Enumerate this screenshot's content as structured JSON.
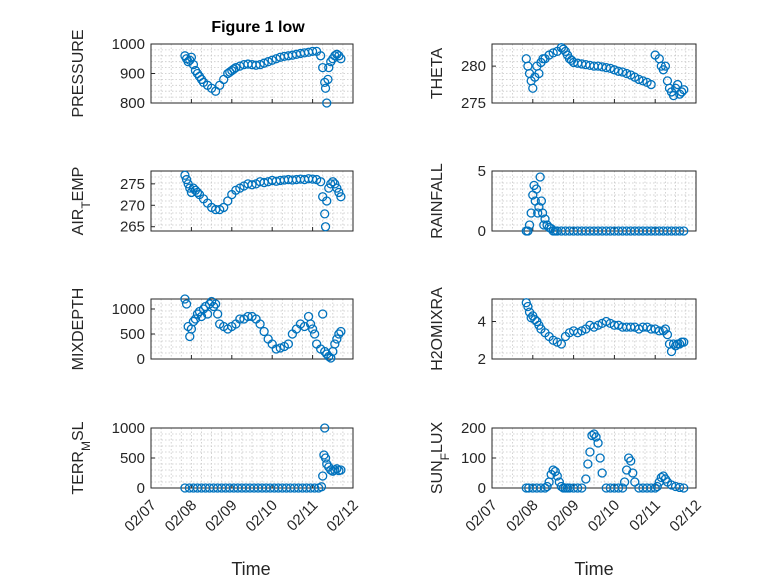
{
  "figure": {
    "title": "Figure 1 low",
    "x_tick_labels": [
      "02/07",
      "02/08",
      "02/09",
      "02/10",
      "02/11",
      "02/12"
    ],
    "xlabel": "Time"
  },
  "chart_data": [
    {
      "type": "scatter",
      "ylabel": "PRESSURE",
      "ylim": [
        800,
        1000
      ],
      "yticks": [
        800,
        900,
        1000
      ],
      "xlim": [
        0,
        5
      ],
      "grid": true,
      "color": "#0072BD",
      "x": [
        0.84,
        0.88,
        0.92,
        0.96,
        1.0,
        1.05,
        1.1,
        1.15,
        1.2,
        1.25,
        1.3,
        1.4,
        1.5,
        1.6,
        1.7,
        1.8,
        1.9,
        1.95,
        2.0,
        2.05,
        2.1,
        2.2,
        2.3,
        2.4,
        2.5,
        2.6,
        2.7,
        2.8,
        2.9,
        3.0,
        3.1,
        3.2,
        3.3,
        3.4,
        3.5,
        3.6,
        3.7,
        3.8,
        3.9,
        4.0,
        4.1,
        4.2,
        4.25,
        4.3,
        4.32,
        4.35,
        4.38,
        4.4,
        4.45,
        4.5,
        4.55,
        4.6,
        4.65,
        4.7
      ],
      "y": [
        960,
        950,
        940,
        945,
        955,
        930,
        910,
        900,
        890,
        880,
        870,
        860,
        850,
        840,
        860,
        880,
        900,
        905,
        910,
        915,
        920,
        925,
        930,
        932,
        930,
        928,
        930,
        935,
        940,
        945,
        950,
        955,
        958,
        960,
        962,
        965,
        968,
        970,
        972,
        975,
        975,
        960,
        920,
        870,
        850,
        800,
        880,
        920,
        940,
        950,
        960,
        965,
        960,
        950
      ]
    },
    {
      "type": "scatter",
      "ylabel": "THETA",
      "ylim": [
        275,
        283
      ],
      "yticks": [
        275,
        280
      ],
      "xlim": [
        0,
        5
      ],
      "grid": true,
      "color": "#0072BD",
      "x": [
        0.84,
        0.88,
        0.92,
        0.96,
        1.0,
        1.05,
        1.1,
        1.15,
        1.2,
        1.25,
        1.3,
        1.4,
        1.5,
        1.6,
        1.7,
        1.75,
        1.8,
        1.85,
        1.9,
        1.95,
        2.0,
        2.1,
        2.2,
        2.3,
        2.4,
        2.5,
        2.6,
        2.7,
        2.8,
        2.9,
        3.0,
        3.1,
        3.2,
        3.3,
        3.4,
        3.5,
        3.6,
        3.7,
        3.8,
        3.9,
        4.0,
        4.1,
        4.15,
        4.2,
        4.25,
        4.3,
        4.35,
        4.4,
        4.45,
        4.5,
        4.55,
        4.6,
        4.65,
        4.7
      ],
      "y": [
        281,
        280,
        279,
        278,
        277,
        278.5,
        280,
        279,
        280.5,
        281,
        281,
        281.5,
        281.8,
        282,
        282.5,
        282.3,
        282,
        281.5,
        281,
        280.8,
        280.5,
        280.4,
        280.3,
        280.2,
        280.1,
        280,
        280,
        279.9,
        279.8,
        279.7,
        279.5,
        279.3,
        279.2,
        279,
        278.8,
        278.5,
        278.2,
        278,
        277.8,
        277.5,
        281.5,
        281,
        280,
        279.5,
        280,
        278,
        277,
        276.5,
        276,
        277,
        277.5,
        276.2,
        276.5,
        276.8
      ]
    },
    {
      "type": "scatter",
      "ylabel": "AIR_TEMP",
      "ylim": [
        264,
        278
      ],
      "yticks": [
        265,
        270,
        275
      ],
      "xlim": [
        0,
        5
      ],
      "grid": true,
      "color": "#0072BD",
      "x": [
        0.84,
        0.88,
        0.92,
        0.96,
        1.0,
        1.05,
        1.1,
        1.15,
        1.2,
        1.3,
        1.4,
        1.5,
        1.6,
        1.7,
        1.8,
        1.9,
        2.0,
        2.1,
        2.2,
        2.3,
        2.4,
        2.5,
        2.6,
        2.7,
        2.8,
        2.9,
        3.0,
        3.1,
        3.2,
        3.3,
        3.4,
        3.5,
        3.6,
        3.7,
        3.8,
        3.9,
        4.0,
        4.1,
        4.2,
        4.25,
        4.3,
        4.32,
        4.35,
        4.4,
        4.45,
        4.5,
        4.55,
        4.6,
        4.65,
        4.7
      ],
      "y": [
        277,
        276,
        275,
        274,
        273,
        274,
        273.5,
        273,
        272.5,
        271.5,
        270.5,
        269.5,
        269,
        269,
        269.5,
        271,
        272.5,
        273.5,
        274,
        274.5,
        275,
        274.8,
        275,
        275.5,
        275.3,
        275.5,
        275.8,
        275.6,
        275.8,
        275.9,
        276,
        275.9,
        276,
        276.1,
        276,
        276.2,
        276.1,
        276,
        275.5,
        272,
        268,
        265,
        271,
        274,
        275,
        275.5,
        275,
        274,
        273,
        272
      ]
    },
    {
      "type": "scatter",
      "ylabel": "RAINFALL",
      "ylim": [
        0,
        5
      ],
      "yticks": [
        0,
        5
      ],
      "xlim": [
        0,
        5
      ],
      "grid": true,
      "color": "#0072BD",
      "x": [
        0.84,
        0.88,
        0.92,
        0.96,
        1.0,
        1.03,
        1.06,
        1.09,
        1.12,
        1.15,
        1.18,
        1.21,
        1.24,
        1.27,
        1.3,
        1.35,
        1.4,
        1.45,
        1.5,
        1.55,
        1.6,
        1.7,
        1.8,
        1.9,
        2.0,
        2.1,
        2.2,
        2.3,
        2.4,
        2.5,
        2.6,
        2.7,
        2.8,
        2.9,
        3.0,
        3.1,
        3.2,
        3.3,
        3.4,
        3.5,
        3.6,
        3.7,
        3.8,
        3.9,
        4.0,
        4.1,
        4.2,
        4.3,
        4.4,
        4.5,
        4.6,
        4.7
      ],
      "y": [
        0,
        0,
        0.5,
        1.5,
        3,
        3.8,
        2.5,
        3.5,
        1.5,
        2,
        4.5,
        2.5,
        1.5,
        0.5,
        1,
        0.5,
        0.3,
        0.2,
        0,
        0,
        0,
        0,
        0,
        0,
        0,
        0,
        0,
        0,
        0,
        0,
        0,
        0,
        0,
        0,
        0,
        0,
        0,
        0,
        0,
        0,
        0,
        0,
        0,
        0,
        0,
        0,
        0,
        0,
        0,
        0,
        0,
        0
      ]
    },
    {
      "type": "scatter",
      "ylabel": "MIXDEPTH",
      "ylim": [
        0,
        1200
      ],
      "yticks": [
        0,
        500,
        1000
      ],
      "xlim": [
        0,
        5
      ],
      "grid": true,
      "color": "#0072BD",
      "x": [
        0.84,
        0.88,
        0.92,
        0.96,
        1.0,
        1.05,
        1.1,
        1.15,
        1.2,
        1.25,
        1.3,
        1.35,
        1.4,
        1.45,
        1.5,
        1.55,
        1.6,
        1.65,
        1.7,
        1.8,
        1.9,
        2.0,
        2.1,
        2.2,
        2.3,
        2.4,
        2.5,
        2.6,
        2.7,
        2.8,
        2.9,
        3.0,
        3.1,
        3.2,
        3.3,
        3.4,
        3.5,
        3.6,
        3.7,
        3.8,
        3.9,
        3.95,
        4.0,
        4.05,
        4.1,
        4.2,
        4.25,
        4.3,
        4.35,
        4.4,
        4.45,
        4.5,
        4.55,
        4.6,
        4.65,
        4.7
      ],
      "y": [
        1200,
        1100,
        650,
        450,
        600,
        750,
        800,
        900,
        950,
        850,
        1000,
        1050,
        900,
        1100,
        1150,
        1050,
        1100,
        900,
        700,
        650,
        600,
        650,
        700,
        800,
        800,
        850,
        850,
        800,
        700,
        550,
        400,
        300,
        200,
        220,
        250,
        300,
        500,
        600,
        700,
        650,
        850,
        700,
        600,
        500,
        300,
        200,
        900,
        150,
        100,
        50,
        20,
        150,
        300,
        400,
        500,
        550
      ]
    },
    {
      "type": "scatter",
      "ylabel": "H2OMIXRA",
      "ylim": [
        2,
        5.2
      ],
      "yticks": [
        2,
        4
      ],
      "xlim": [
        0,
        5
      ],
      "grid": true,
      "color": "#0072BD",
      "x": [
        0.84,
        0.88,
        0.92,
        0.96,
        1.0,
        1.05,
        1.1,
        1.15,
        1.2,
        1.3,
        1.4,
        1.5,
        1.6,
        1.7,
        1.8,
        1.9,
        2.0,
        2.1,
        2.2,
        2.3,
        2.4,
        2.5,
        2.6,
        2.7,
        2.8,
        2.9,
        3.0,
        3.1,
        3.2,
        3.3,
        3.4,
        3.5,
        3.6,
        3.7,
        3.8,
        3.9,
        4.0,
        4.1,
        4.2,
        4.25,
        4.3,
        4.35,
        4.4,
        4.45,
        4.5,
        4.55,
        4.6,
        4.65,
        4.7
      ],
      "y": [
        5,
        4.8,
        4.5,
        4.2,
        4.3,
        4.1,
        4.0,
        3.8,
        3.6,
        3.4,
        3.2,
        3.0,
        2.9,
        2.8,
        3.2,
        3.4,
        3.5,
        3.4,
        3.5,
        3.6,
        3.8,
        3.7,
        3.8,
        3.9,
        4.0,
        3.9,
        3.8,
        3.8,
        3.7,
        3.7,
        3.7,
        3.7,
        3.6,
        3.7,
        3.7,
        3.6,
        3.6,
        3.5,
        3.5,
        3.6,
        3.3,
        2.8,
        2.4,
        2.8,
        2.7,
        2.8,
        2.8,
        2.9,
        2.9
      ]
    },
    {
      "type": "scatter",
      "ylabel": "TERR_MSL",
      "ylim": [
        0,
        1000
      ],
      "yticks": [
        0,
        500,
        1000
      ],
      "xlim": [
        0,
        5
      ],
      "grid": true,
      "color": "#0072BD",
      "x": [
        0.84,
        0.95,
        1.05,
        1.15,
        1.25,
        1.35,
        1.45,
        1.55,
        1.65,
        1.75,
        1.85,
        1.95,
        2.05,
        2.15,
        2.25,
        2.35,
        2.45,
        2.55,
        2.65,
        2.75,
        2.85,
        2.95,
        3.05,
        3.15,
        3.25,
        3.35,
        3.45,
        3.55,
        3.65,
        3.75,
        3.85,
        3.95,
        4.05,
        4.15,
        4.22,
        4.25,
        4.28,
        4.3,
        4.32,
        4.35,
        4.4,
        4.45,
        4.5,
        4.55,
        4.6,
        4.65,
        4.7
      ],
      "y": [
        0,
        0,
        0,
        0,
        0,
        0,
        0,
        0,
        0,
        0,
        0,
        0,
        0,
        0,
        0,
        0,
        0,
        0,
        0,
        0,
        0,
        0,
        0,
        0,
        0,
        0,
        0,
        0,
        0,
        0,
        0,
        0,
        0,
        0,
        20,
        200,
        550,
        1000,
        500,
        400,
        350,
        300,
        280,
        300,
        320,
        290,
        300
      ]
    },
    {
      "type": "scatter",
      "ylabel": "SUN_FLUX",
      "ylim": [
        0,
        200
      ],
      "yticks": [
        0,
        100,
        200
      ],
      "xlim": [
        0,
        5
      ],
      "grid": true,
      "color": "#0072BD",
      "x": [
        0.84,
        0.9,
        1.0,
        1.1,
        1.2,
        1.3,
        1.35,
        1.4,
        1.45,
        1.5,
        1.55,
        1.6,
        1.65,
        1.7,
        1.75,
        1.8,
        1.85,
        1.9,
        2.0,
        2.1,
        2.2,
        2.3,
        2.35,
        2.4,
        2.45,
        2.5,
        2.55,
        2.6,
        2.65,
        2.7,
        2.8,
        2.9,
        3.0,
        3.1,
        3.2,
        3.25,
        3.3,
        3.35,
        3.4,
        3.45,
        3.5,
        3.6,
        3.7,
        3.8,
        3.9,
        4.0,
        4.05,
        4.1,
        4.15,
        4.2,
        4.25,
        4.3,
        4.4,
        4.5,
        4.6,
        4.7
      ],
      "y": [
        0,
        0,
        0,
        0,
        0,
        0,
        5,
        20,
        45,
        60,
        55,
        40,
        20,
        5,
        0,
        0,
        0,
        0,
        0,
        0,
        0,
        30,
        80,
        120,
        175,
        180,
        170,
        150,
        100,
        50,
        0,
        0,
        0,
        0,
        0,
        20,
        60,
        100,
        90,
        50,
        20,
        0,
        0,
        0,
        0,
        0,
        5,
        20,
        35,
        40,
        30,
        20,
        10,
        5,
        2,
        0
      ]
    }
  ]
}
